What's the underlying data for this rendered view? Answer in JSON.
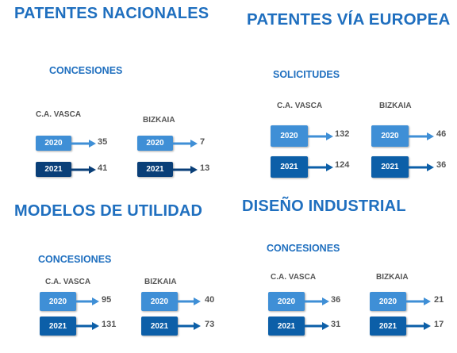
{
  "sections": [
    {
      "title": "PATENTES NACIONALES",
      "subtitle": "CONCESIONES",
      "regions": [
        {
          "name": "C.A. VASCA",
          "rows": [
            {
              "year": "2020",
              "value": "35"
            },
            {
              "year": "2021",
              "value": "41"
            }
          ]
        },
        {
          "name": "BIZKAIA",
          "rows": [
            {
              "year": "2020",
              "value": "7"
            },
            {
              "year": "2021",
              "value": "13"
            }
          ]
        }
      ]
    },
    {
      "title": "PATENTES VÍA EUROPEA",
      "subtitle": "SOLICITUDES",
      "regions": [
        {
          "name": "C.A. VASCA",
          "rows": [
            {
              "year": "2020",
              "value": "132"
            },
            {
              "year": "2021",
              "value": "124"
            }
          ]
        },
        {
          "name": "BIZKAIA",
          "rows": [
            {
              "year": "2020",
              "value": "46"
            },
            {
              "year": "2021",
              "value": "36"
            }
          ]
        }
      ]
    },
    {
      "title": "MODELOS DE UTILIDAD",
      "subtitle": "CONCESIONES",
      "regions": [
        {
          "name": "C.A. VASCA",
          "rows": [
            {
              "year": "2020",
              "value": "95"
            },
            {
              "year": "2021",
              "value": "131"
            }
          ]
        },
        {
          "name": "BIZKAIA",
          "rows": [
            {
              "year": "2020",
              "value": "40"
            },
            {
              "year": "2021",
              "value": "73"
            }
          ]
        }
      ]
    },
    {
      "title": "DISEÑO INDUSTRIAL",
      "subtitle": "CONCESIONES",
      "regions": [
        {
          "name": "C.A. VASCA",
          "rows": [
            {
              "year": "2020",
              "value": "36"
            },
            {
              "year": "2021",
              "value": "31"
            }
          ]
        },
        {
          "name": "BIZKAIA",
          "rows": [
            {
              "year": "2020",
              "value": "21"
            },
            {
              "year": "2021",
              "value": "17"
            }
          ]
        }
      ]
    }
  ],
  "colors": {
    "title": "#1f6fbf",
    "bar_2020": "#3f8fd6",
    "bar_2021": "#0c5fa8",
    "value_text": "#555555"
  }
}
